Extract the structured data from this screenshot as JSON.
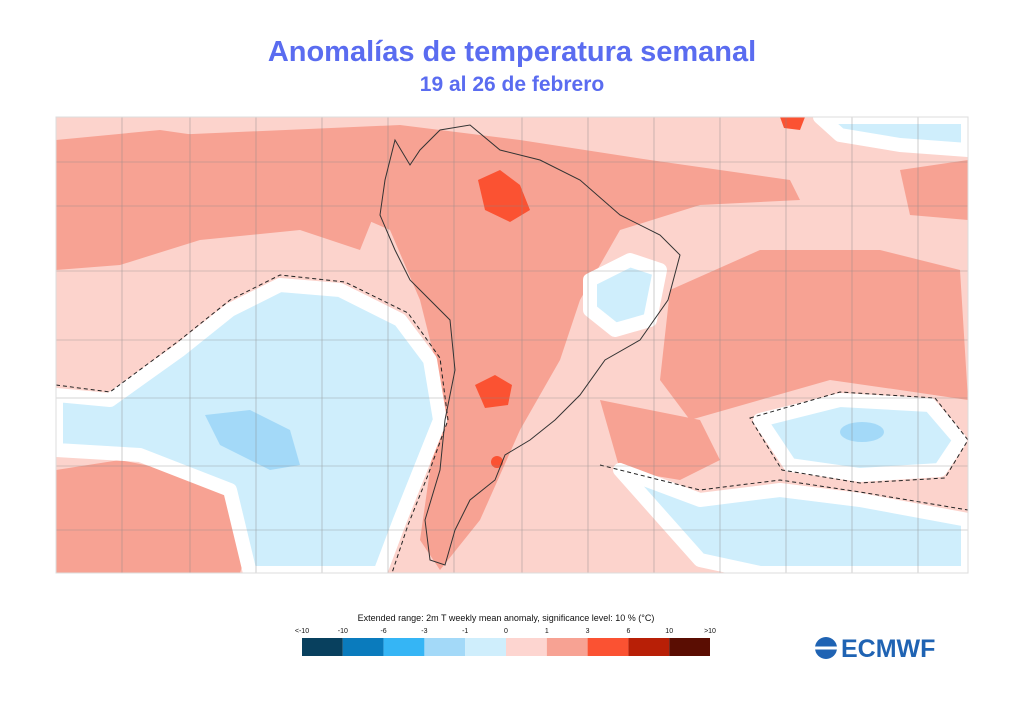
{
  "header": {
    "title": "Anomalías de temperatura semanal",
    "subtitle": "19 al 26 de febrero"
  },
  "legend": {
    "caption": "Extended range: 2m T weekly mean anomaly, significance level: 10 % (°C)",
    "labels": [
      "<-10",
      "-10",
      "-6",
      "-3",
      "-1",
      "0",
      "1",
      "3",
      "6",
      "10",
      ">10"
    ],
    "colors": [
      "#08405e",
      "#0a7bbd",
      "#35b5f5",
      "#a3d9f8",
      "#cfeefc",
      "#fdd5d0",
      "#f7a293",
      "#fb5232",
      "#b81f06",
      "#5a0d02"
    ]
  },
  "logo": "ECMWF"
}
